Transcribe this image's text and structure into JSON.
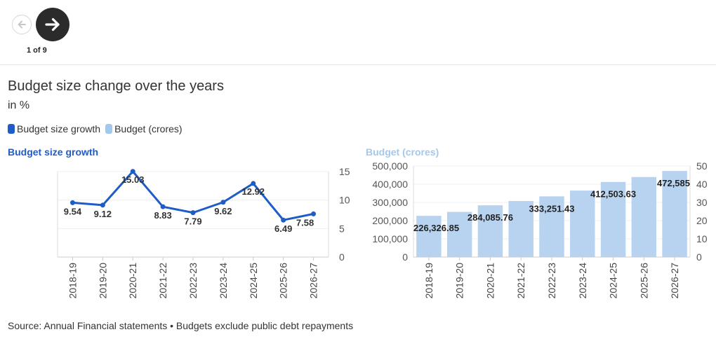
{
  "nav": {
    "page_indicator": "1 of 9",
    "prev_icon": "arrow-left-icon",
    "next_icon": "arrow-right-icon"
  },
  "header": {
    "title": "Budget size change over the years",
    "subtitle": "in %"
  },
  "legend": {
    "items": [
      {
        "label": "Budget size growth",
        "color": "#1e5cc8"
      },
      {
        "label": "Budget (crores)",
        "color": "#a4c8ec"
      }
    ]
  },
  "footer": {
    "source": "Source: Annual Financial statements • Budgets exclude public debt repayments"
  },
  "chart_data": [
    {
      "type": "line",
      "title": "Budget size growth",
      "color": "#1e5cc8",
      "categories": [
        "2018-19",
        "2019-20",
        "2020-21",
        "2021-22",
        "2022-23",
        "2023-24",
        "2024-25",
        "2025-26",
        "2026-27"
      ],
      "values": [
        9.54,
        9.12,
        15.03,
        8.83,
        7.79,
        9.62,
        12.92,
        6.49,
        7.58
      ],
      "data_labels": [
        "9.54",
        "9.12",
        "15.03",
        "8.83",
        "7.79",
        "9.62",
        "12.92",
        "6.49",
        "7.58"
      ],
      "y_axis_side": "right",
      "ylim": [
        0,
        15
      ],
      "yticks": [
        0,
        5,
        10,
        15
      ],
      "grid": true
    },
    {
      "type": "bar",
      "title": "Budget (crores)",
      "color": "#b7d3f0",
      "categories": [
        "2018-19",
        "2019-20",
        "2020-21",
        "2021-22",
        "2022-23",
        "2023-24",
        "2024-25",
        "2025-26",
        "2026-27"
      ],
      "values": [
        226326.85,
        248000,
        284085.76,
        308000,
        333251.43,
        365000,
        412503.63,
        439500,
        472585
      ],
      "data_labels": [
        "226,326.85",
        "",
        "284,085.76",
        "",
        "333,251.43",
        "",
        "412,503.63",
        "",
        "472,585"
      ],
      "left_axis": {
        "ylim": [
          0,
          500000
        ],
        "ticks": [
          "0",
          "100,000",
          "200,000",
          "300,000",
          "400,000",
          "500,000"
        ]
      },
      "right_axis": {
        "ylim": [
          0,
          50
        ],
        "ticks": [
          "0",
          "10",
          "20",
          "30",
          "40",
          "50"
        ]
      },
      "grid": true
    }
  ]
}
